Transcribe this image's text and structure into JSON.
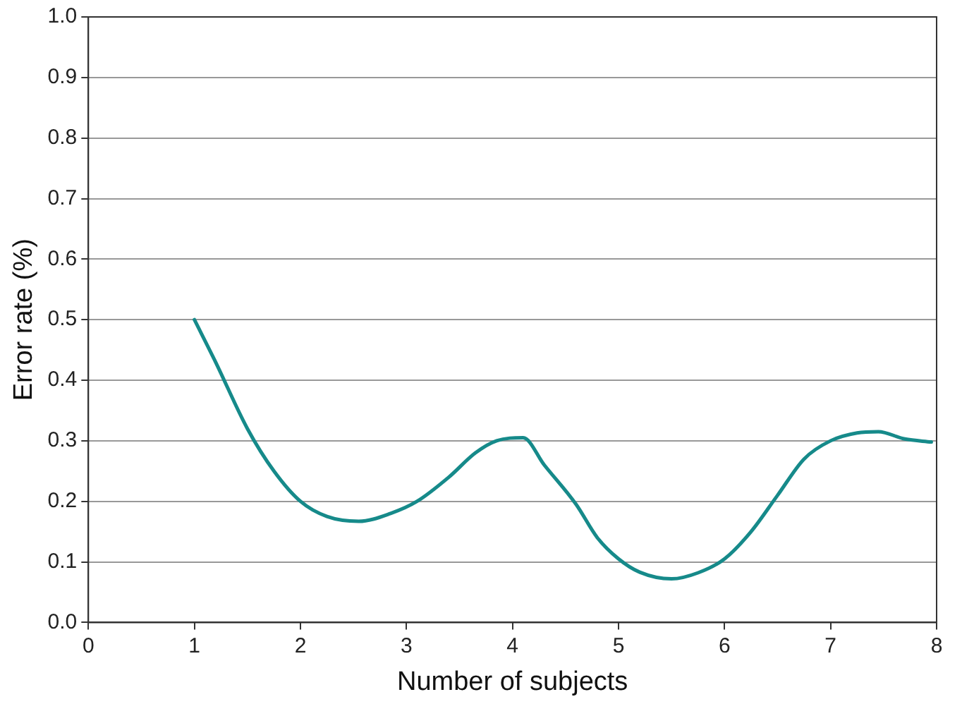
{
  "chart_data": {
    "type": "line",
    "xlabel": "Number of subjects",
    "ylabel": "Error rate (%)",
    "x": [
      1,
      1.2,
      1.5,
      1.75,
      2,
      2.25,
      2.55,
      2.85,
      3.1,
      3.4,
      3.65,
      3.85,
      4.1,
      4.3,
      4.6,
      4.8,
      5,
      5.2,
      5.5,
      5.75,
      6,
      6.25,
      6.5,
      6.75,
      7,
      7.25,
      7.45,
      7.7,
      7.95
    ],
    "series": [
      {
        "color": "#168a8a",
        "values": [
          0.5,
          0.43,
          0.32,
          0.25,
          0.2,
          0.175,
          0.167,
          0.18,
          0.2,
          0.24,
          0.28,
          0.3,
          0.305,
          0.26,
          0.195,
          0.14,
          0.105,
          0.083,
          0.072,
          0.082,
          0.105,
          0.15,
          0.21,
          0.27,
          0.3,
          0.313,
          0.315,
          0.303,
          0.298
        ]
      }
    ],
    "xlim": [
      0,
      8
    ],
    "xticks": [
      0,
      1,
      2,
      3,
      4,
      5,
      6,
      7,
      8
    ],
    "ylim": [
      0,
      1
    ],
    "yticks": [
      {
        "value": 0,
        "label": "0.0"
      },
      {
        "value": 0.1,
        "label": "0.1"
      },
      {
        "value": 0.2,
        "label": "0.2"
      },
      {
        "value": 0.3,
        "label": "0.3"
      },
      {
        "value": 0.4,
        "label": "0.4"
      },
      {
        "value": 0.5,
        "label": "0.5"
      },
      {
        "value": 0.6,
        "label": "0.6"
      },
      {
        "value": 0.7,
        "label": "0.7"
      },
      {
        "value": 0.8,
        "label": "0.8"
      },
      {
        "value": 0.9,
        "label": "0.9"
      },
      {
        "value": 1,
        "label": "1.0"
      }
    ],
    "grid": "y",
    "legend": false,
    "marker": "none",
    "line_style": "solid"
  }
}
